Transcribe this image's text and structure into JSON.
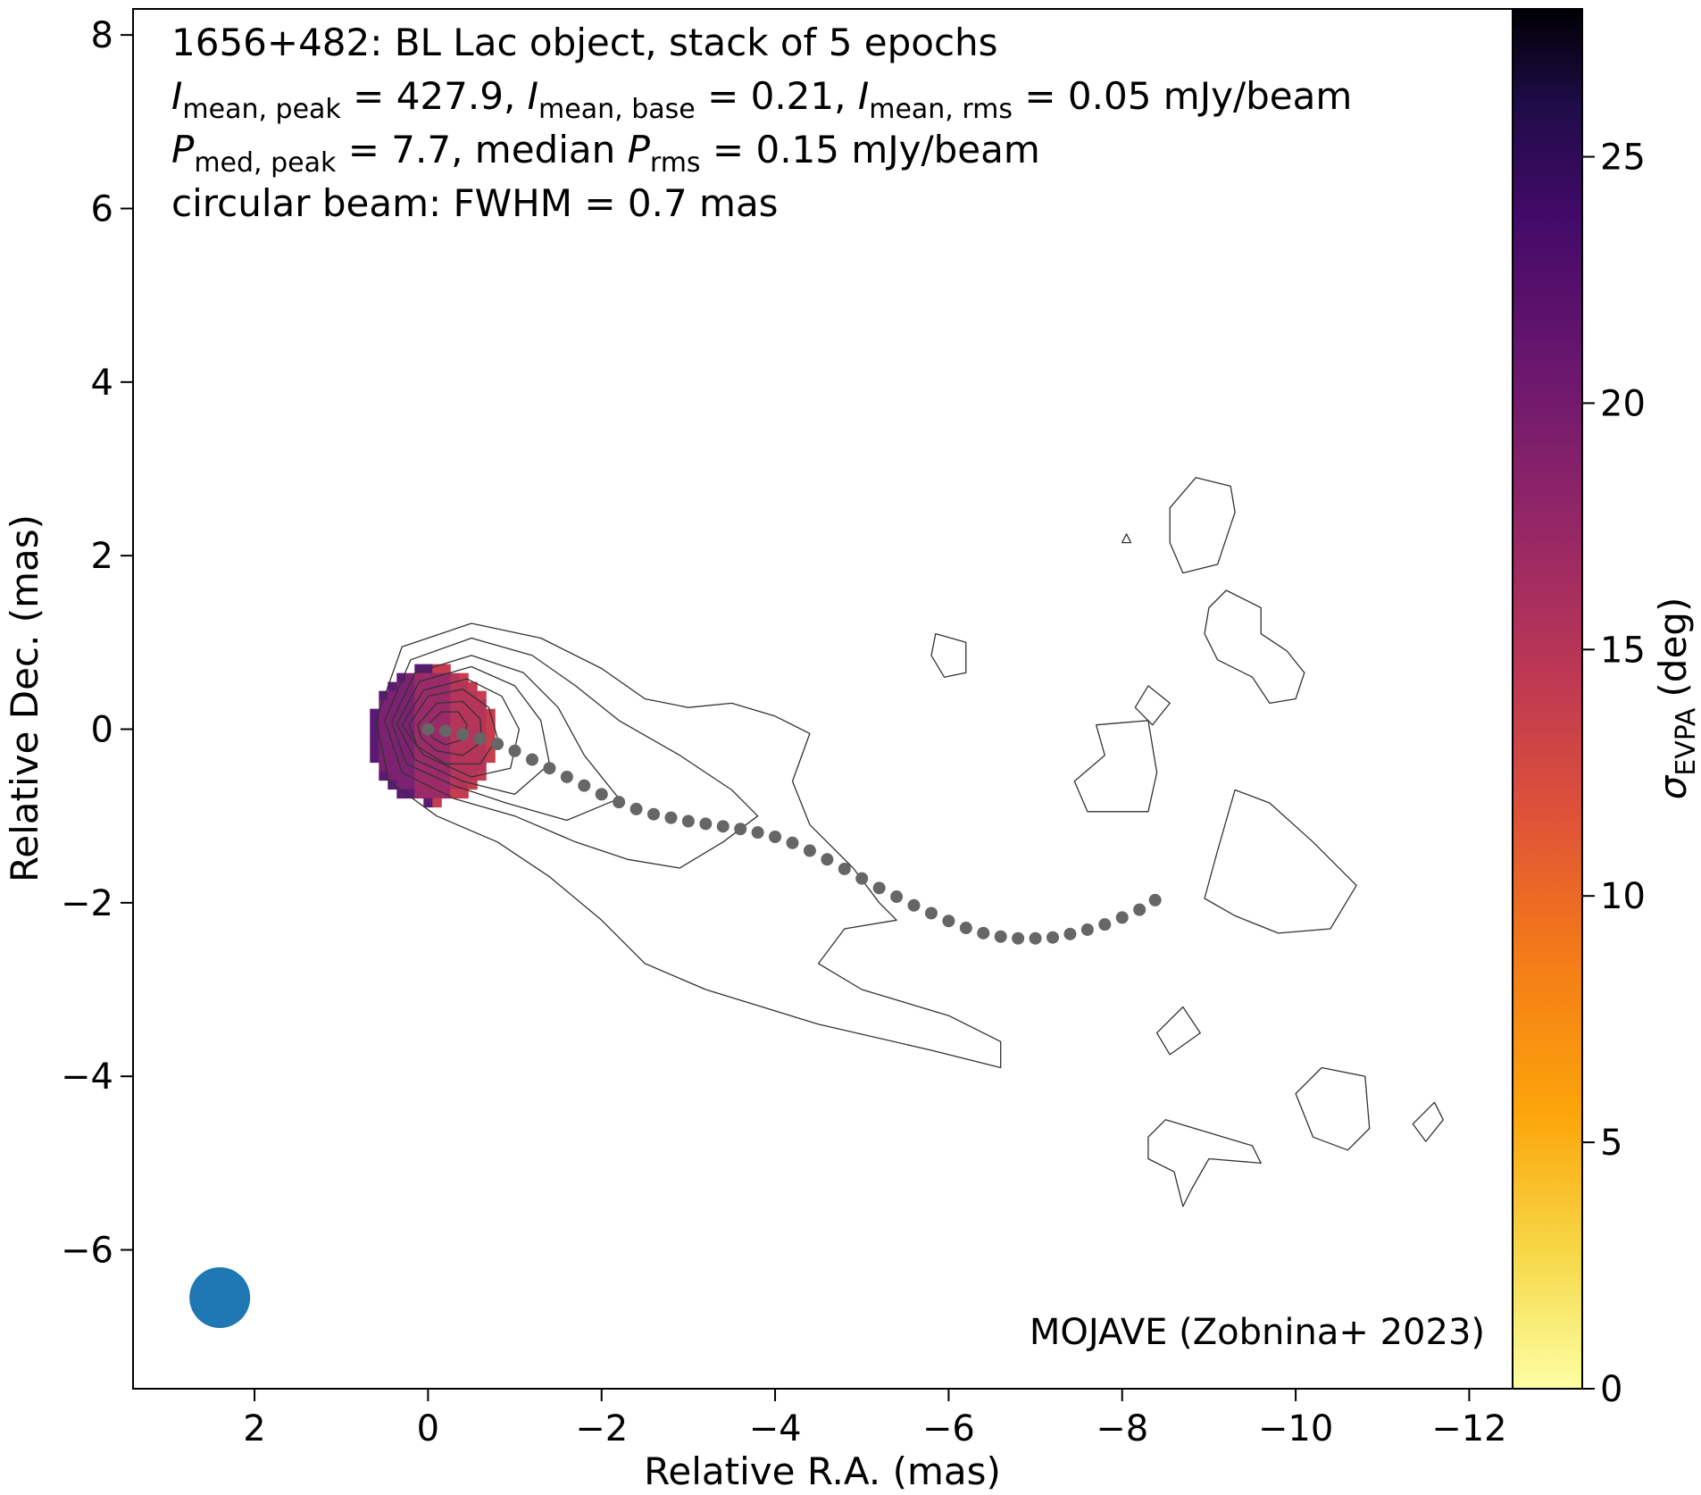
{
  "chart_data": {
    "type": "scatter",
    "annotation_lines": [
      {
        "segments": [
          {
            "t": "1656+482: BL Lac object, stack of 5 epochs",
            "sub": false
          }
        ]
      },
      {
        "segments": [
          {
            "t": "I",
            "sub": false,
            "italic": true
          },
          {
            "t": "mean, peak",
            "sub": true
          },
          {
            "t": " = 427.9, ",
            "sub": false
          },
          {
            "t": "I",
            "sub": false,
            "italic": true
          },
          {
            "t": "mean, base",
            "sub": true
          },
          {
            "t": " = 0.21, ",
            "sub": false
          },
          {
            "t": "I",
            "sub": false,
            "italic": true
          },
          {
            "t": "mean, rms",
            "sub": true
          },
          {
            "t": " = 0.05 mJy/beam",
            "sub": false
          }
        ]
      },
      {
        "segments": [
          {
            "t": "P",
            "sub": false,
            "italic": true
          },
          {
            "t": "med, peak",
            "sub": true
          },
          {
            "t": " = 7.7, median ",
            "sub": false
          },
          {
            "t": "P",
            "sub": false,
            "italic": true
          },
          {
            "t": "rms",
            "sub": true
          },
          {
            "t": " = 0.15 mJy/beam",
            "sub": false
          }
        ]
      },
      {
        "segments": [
          {
            "t": "circular beam: FWHM = 0.7 mas",
            "sub": false
          }
        ]
      }
    ],
    "credit": "MOJAVE (Zobnina+ 2023)",
    "xlabel": "Relative R.A. (mas)",
    "ylabel": "Relative Dec. (mas)",
    "xlim": [
      3.4,
      -12.5
    ],
    "ylim": [
      -7.6,
      8.3
    ],
    "xticks": [
      2,
      0,
      -2,
      -4,
      -6,
      -8,
      -10,
      -12
    ],
    "yticks": [
      -6,
      -4,
      -2,
      0,
      2,
      4,
      6,
      8
    ],
    "colorbar": {
      "label_main": "σ",
      "label_sub": "EVPA",
      "label_unit": "(deg)",
      "range": [
        0,
        28
      ],
      "ticks": [
        0,
        5,
        10,
        15,
        20,
        25
      ],
      "colormap": "inferno_r"
    },
    "ridgeline": {
      "color": "#666666",
      "points": [
        [
          0.0,
          0.0
        ],
        [
          -0.2,
          -0.02
        ],
        [
          -0.4,
          -0.06
        ],
        [
          -0.6,
          -0.11
        ],
        [
          -0.8,
          -0.17
        ],
        [
          -1.0,
          -0.25
        ],
        [
          -1.2,
          -0.35
        ],
        [
          -1.4,
          -0.45
        ],
        [
          -1.6,
          -0.55
        ],
        [
          -1.8,
          -0.65
        ],
        [
          -2.0,
          -0.75
        ],
        [
          -2.2,
          -0.84
        ],
        [
          -2.4,
          -0.92
        ],
        [
          -2.6,
          -0.98
        ],
        [
          -2.8,
          -1.02
        ],
        [
          -3.0,
          -1.06
        ],
        [
          -3.2,
          -1.09
        ],
        [
          -3.4,
          -1.12
        ],
        [
          -3.6,
          -1.15
        ],
        [
          -3.8,
          -1.19
        ],
        [
          -4.0,
          -1.24
        ],
        [
          -4.2,
          -1.31
        ],
        [
          -4.4,
          -1.4
        ],
        [
          -4.6,
          -1.5
        ],
        [
          -4.8,
          -1.61
        ],
        [
          -5.0,
          -1.72
        ],
        [
          -5.2,
          -1.83
        ],
        [
          -5.4,
          -1.93
        ],
        [
          -5.6,
          -2.03
        ],
        [
          -5.8,
          -2.12
        ],
        [
          -6.0,
          -2.21
        ],
        [
          -6.2,
          -2.29
        ],
        [
          -6.4,
          -2.35
        ],
        [
          -6.6,
          -2.39
        ],
        [
          -6.8,
          -2.41
        ],
        [
          -7.0,
          -2.41
        ],
        [
          -7.2,
          -2.4
        ],
        [
          -7.4,
          -2.36
        ],
        [
          -7.6,
          -2.31
        ],
        [
          -7.8,
          -2.25
        ],
        [
          -8.0,
          -2.17
        ],
        [
          -8.2,
          -2.08
        ],
        [
          -8.38,
          -1.97
        ]
      ]
    },
    "contours": [
      [
        [
          0.6,
          0.1
        ],
        [
          0.3,
          0.95
        ],
        [
          -0.5,
          1.22
        ],
        [
          -1.3,
          1.05
        ],
        [
          -2.0,
          0.7
        ],
        [
          -2.5,
          0.35
        ],
        [
          -3.0,
          0.25
        ],
        [
          -3.5,
          0.3
        ],
        [
          -4.0,
          0.15
        ],
        [
          -4.4,
          -0.05
        ],
        [
          -4.2,
          -0.6
        ],
        [
          -4.4,
          -1.1
        ],
        [
          -4.9,
          -1.6
        ],
        [
          -5.2,
          -2.0
        ],
        [
          -5.4,
          -2.2
        ],
        [
          -4.8,
          -2.3
        ],
        [
          -4.5,
          -2.7
        ],
        [
          -5.0,
          -3.0
        ],
        [
          -6.0,
          -3.3
        ],
        [
          -6.6,
          -3.6
        ],
        [
          -6.6,
          -3.9
        ],
        [
          -5.8,
          -3.7
        ],
        [
          -4.5,
          -3.4
        ],
        [
          -3.2,
          -3.0
        ],
        [
          -2.5,
          -2.7
        ],
        [
          -2.0,
          -2.2
        ],
        [
          -1.4,
          -1.7
        ],
        [
          -0.8,
          -1.3
        ],
        [
          -0.1,
          -1.0
        ],
        [
          0.45,
          -0.6
        ],
        [
          0.6,
          0.1
        ]
      ],
      [
        [
          0.5,
          0.1
        ],
        [
          0.2,
          0.8
        ],
        [
          -0.5,
          1.05
        ],
        [
          -1.2,
          0.85
        ],
        [
          -1.7,
          0.5
        ],
        [
          -2.2,
          0.1
        ],
        [
          -2.9,
          -0.3
        ],
        [
          -3.5,
          -0.7
        ],
        [
          -3.8,
          -1.0
        ],
        [
          -3.4,
          -1.3
        ],
        [
          -2.9,
          -1.6
        ],
        [
          -2.3,
          -1.5
        ],
        [
          -1.7,
          -1.3
        ],
        [
          -1.0,
          -1.0
        ],
        [
          -0.3,
          -0.8
        ],
        [
          0.3,
          -0.5
        ],
        [
          0.5,
          0.1
        ]
      ],
      [
        [
          0.42,
          0.08
        ],
        [
          0.15,
          0.65
        ],
        [
          -0.5,
          0.85
        ],
        [
          -1.1,
          0.65
        ],
        [
          -1.5,
          0.25
        ],
        [
          -1.8,
          -0.3
        ],
        [
          -2.2,
          -0.8
        ],
        [
          -1.6,
          -1.05
        ],
        [
          -0.9,
          -0.85
        ],
        [
          -0.3,
          -0.65
        ],
        [
          0.25,
          -0.4
        ],
        [
          0.42,
          0.08
        ]
      ],
      [
        [
          0.36,
          0.06
        ],
        [
          0.1,
          0.55
        ],
        [
          -0.5,
          0.72
        ],
        [
          -1.0,
          0.5
        ],
        [
          -1.3,
          0.1
        ],
        [
          -1.4,
          -0.4
        ],
        [
          -1.0,
          -0.75
        ],
        [
          -0.4,
          -0.6
        ],
        [
          0.15,
          -0.35
        ],
        [
          0.36,
          0.06
        ]
      ],
      [
        [
          0.3,
          0.05
        ],
        [
          0.05,
          0.45
        ],
        [
          -0.45,
          0.58
        ],
        [
          -0.85,
          0.38
        ],
        [
          -1.05,
          0.0
        ],
        [
          -0.95,
          -0.45
        ],
        [
          -0.5,
          -0.55
        ],
        [
          0.05,
          -0.3
        ],
        [
          0.3,
          0.05
        ]
      ],
      [
        [
          0.22,
          0.05
        ],
        [
          0.0,
          0.38
        ],
        [
          -0.4,
          0.46
        ],
        [
          -0.7,
          0.25
        ],
        [
          -0.8,
          -0.1
        ],
        [
          -0.6,
          -0.4
        ],
        [
          -0.2,
          -0.4
        ],
        [
          0.12,
          -0.2
        ],
        [
          0.22,
          0.05
        ]
      ],
      [
        [
          0.12,
          0.05
        ],
        [
          -0.1,
          0.3
        ],
        [
          -0.4,
          0.32
        ],
        [
          -0.6,
          0.12
        ],
        [
          -0.62,
          -0.15
        ],
        [
          -0.4,
          -0.3
        ],
        [
          -0.1,
          -0.25
        ],
        [
          0.08,
          -0.1
        ],
        [
          0.12,
          0.05
        ]
      ],
      [
        [
          0.0,
          0.05
        ],
        [
          -0.15,
          0.2
        ],
        [
          -0.35,
          0.2
        ],
        [
          -0.45,
          0.05
        ],
        [
          -0.4,
          -0.12
        ],
        [
          -0.2,
          -0.18
        ],
        [
          -0.05,
          -0.1
        ],
        [
          0.0,
          0.05
        ]
      ],
      [
        [
          -8.55,
          2.55
        ],
        [
          -8.85,
          2.9
        ],
        [
          -9.25,
          2.8
        ],
        [
          -9.3,
          2.5
        ],
        [
          -9.1,
          1.9
        ],
        [
          -8.7,
          1.8
        ],
        [
          -8.55,
          2.15
        ],
        [
          -8.55,
          2.55
        ]
      ],
      [
        [
          -9.0,
          1.4
        ],
        [
          -9.2,
          1.6
        ],
        [
          -9.6,
          1.4
        ],
        [
          -9.6,
          1.1
        ],
        [
          -9.9,
          0.9
        ],
        [
          -10.1,
          0.65
        ],
        [
          -10.0,
          0.35
        ],
        [
          -9.7,
          0.3
        ],
        [
          -9.5,
          0.6
        ],
        [
          -9.1,
          0.8
        ],
        [
          -8.95,
          1.1
        ],
        [
          -9.0,
          1.4
        ]
      ],
      [
        [
          -5.85,
          1.1
        ],
        [
          -6.2,
          1.0
        ],
        [
          -6.2,
          0.65
        ],
        [
          -5.95,
          0.6
        ],
        [
          -5.8,
          0.85
        ],
        [
          -5.85,
          1.1
        ]
      ],
      [
        [
          -8.3,
          0.5
        ],
        [
          -8.55,
          0.3
        ],
        [
          -8.35,
          0.05
        ],
        [
          -8.15,
          0.25
        ],
        [
          -8.3,
          0.5
        ]
      ],
      [
        [
          -7.7,
          0.05
        ],
        [
          -8.3,
          0.1
        ],
        [
          -8.4,
          -0.5
        ],
        [
          -8.3,
          -0.95
        ],
        [
          -7.6,
          -0.95
        ],
        [
          -7.45,
          -0.6
        ],
        [
          -7.8,
          -0.3
        ],
        [
          -7.7,
          0.05
        ]
      ],
      [
        [
          -9.3,
          -0.7
        ],
        [
          -9.7,
          -0.85
        ],
        [
          -10.2,
          -1.3
        ],
        [
          -10.7,
          -1.8
        ],
        [
          -10.4,
          -2.3
        ],
        [
          -9.8,
          -2.35
        ],
        [
          -9.3,
          -2.15
        ],
        [
          -8.95,
          -1.95
        ],
        [
          -9.1,
          -1.4
        ],
        [
          -9.3,
          -0.7
        ]
      ],
      [
        [
          -8.7,
          -3.2
        ],
        [
          -8.9,
          -3.5
        ],
        [
          -8.55,
          -3.75
        ],
        [
          -8.4,
          -3.5
        ],
        [
          -8.7,
          -3.2
        ]
      ],
      [
        [
          -10.3,
          -3.9
        ],
        [
          -10.8,
          -4.0
        ],
        [
          -10.85,
          -4.6
        ],
        [
          -10.6,
          -4.85
        ],
        [
          -10.2,
          -4.7
        ],
        [
          -10.0,
          -4.2
        ],
        [
          -10.3,
          -3.9
        ]
      ],
      [
        [
          -8.5,
          -4.5
        ],
        [
          -9.5,
          -4.8
        ],
        [
          -9.6,
          -5.0
        ],
        [
          -9.0,
          -4.95
        ],
        [
          -8.8,
          -5.3
        ],
        [
          -8.7,
          -5.5
        ],
        [
          -8.6,
          -5.1
        ],
        [
          -8.3,
          -4.95
        ],
        [
          -8.3,
          -4.7
        ],
        [
          -8.5,
          -4.5
        ]
      ],
      [
        [
          -11.6,
          -4.3
        ],
        [
          -11.7,
          -4.5
        ],
        [
          -11.5,
          -4.75
        ],
        [
          -11.35,
          -4.55
        ],
        [
          -11.6,
          -4.3
        ]
      ],
      [
        [
          -8.05,
          2.25
        ],
        [
          -8.1,
          2.15
        ],
        [
          -8.0,
          2.15
        ],
        [
          -8.05,
          2.25
        ]
      ]
    ],
    "polarization_blob": {
      "center": [
        -0.05,
        -0.05
      ],
      "radius_x": 0.72,
      "radius_y": 0.8,
      "sigma_deg": [
        19,
        17,
        15
      ]
    },
    "beam": {
      "center": [
        2.4,
        -6.55
      ],
      "fwhm": 0.7,
      "color": "#1f77b4"
    }
  }
}
